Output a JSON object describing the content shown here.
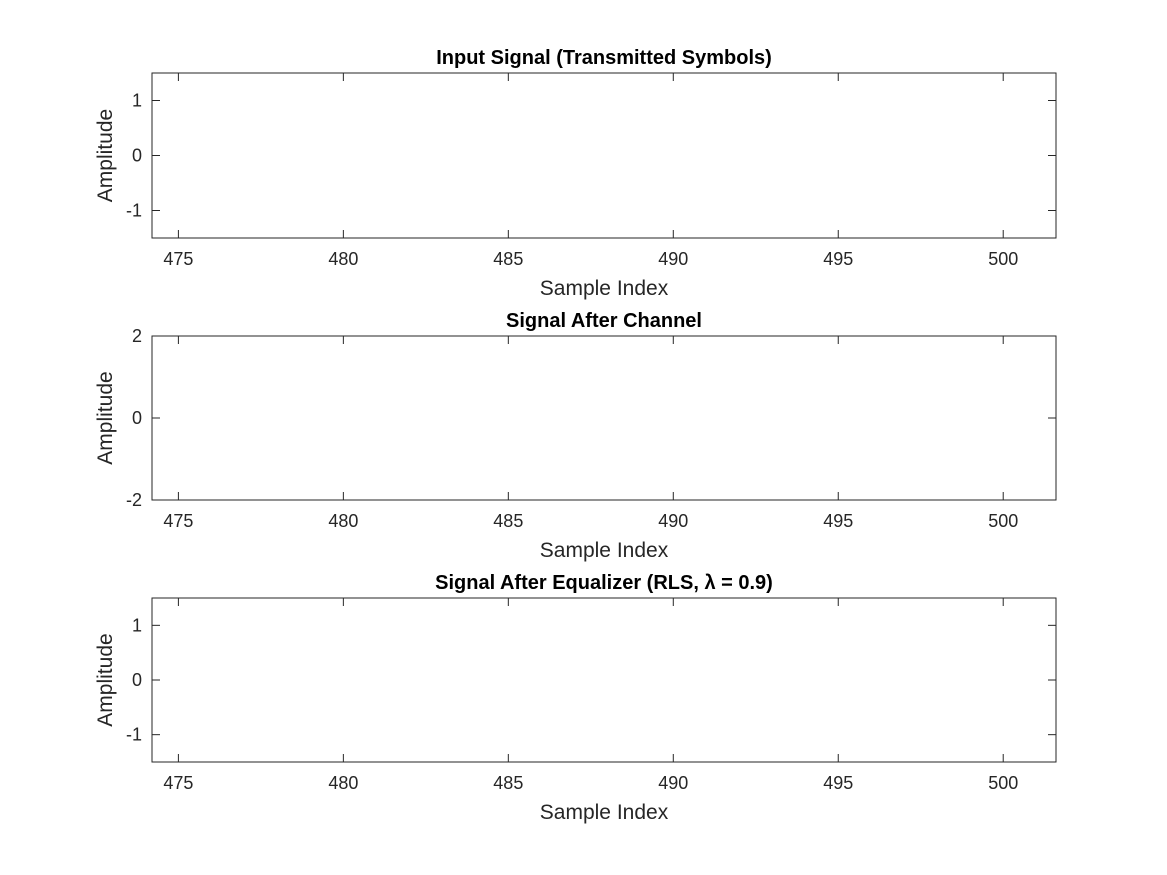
{
  "chart_data": [
    {
      "type": "stem",
      "title": "Input Signal (Transmitted Symbols)",
      "xlabel": "Sample Index",
      "ylabel": "Amplitude",
      "color": "#0000ff",
      "xlim": [
        474.2,
        501.6
      ],
      "ylim": [
        -1.5,
        1.5
      ],
      "xticks": [
        475,
        480,
        485,
        490,
        495,
        500
      ],
      "yticks": [
        -1,
        0,
        1
      ],
      "grid": true,
      "x": [
        475,
        476,
        477,
        478,
        479,
        480,
        481,
        482,
        483,
        484,
        485,
        486,
        487,
        488,
        489,
        490,
        491,
        492,
        493,
        494,
        495,
        496,
        497,
        498,
        499,
        500
      ],
      "y": [
        1,
        -1,
        -1,
        1,
        -1,
        1,
        1,
        -1,
        -1,
        1,
        -1,
        1,
        -1,
        1,
        1,
        1,
        -1,
        -1,
        1,
        1,
        -1,
        -1,
        -1,
        -1,
        1,
        1
      ]
    },
    {
      "type": "stem",
      "title": "Signal After Channel",
      "xlabel": "Sample Index",
      "ylabel": "Amplitude",
      "color": "#ff0000",
      "xlim": [
        474.2,
        501.6
      ],
      "ylim": [
        -2,
        2
      ],
      "xticks": [
        475,
        480,
        485,
        490,
        495,
        500
      ],
      "yticks": [
        -2,
        0,
        2
      ],
      "grid": true,
      "x": [
        475,
        476,
        477,
        478,
        479,
        480,
        481,
        482,
        483,
        484,
        485,
        486,
        487,
        488,
        489,
        490,
        491,
        492,
        493,
        494,
        495,
        496,
        497,
        498,
        499,
        500
      ],
      "y": [
        1.4,
        1.0,
        -1.03,
        -1.0,
        0.58,
        -0.6,
        0.92,
        0.96,
        -1.02,
        -0.98,
        0.52,
        -0.5,
        0.54,
        -0.52,
        0.97,
        1.43,
        1.0,
        -0.94,
        -1.0,
        1.0,
        0.97,
        -1.03,
        -1.47,
        -1.41,
        -1.03,
        1.02
      ]
    },
    {
      "type": "stem",
      "title": "Signal After Equalizer (RLS, λ = 0.9)",
      "xlabel": "Sample Index",
      "ylabel": "Amplitude",
      "color": "#00ff00",
      "xlim": [
        474.2,
        501.6
      ],
      "ylim": [
        -1.5,
        1.5
      ],
      "xticks": [
        475,
        480,
        485,
        490,
        495,
        500
      ],
      "yticks": [
        -1,
        0,
        1
      ],
      "grid": true,
      "x": [
        475,
        476,
        477,
        478,
        479,
        480,
        481,
        482,
        483,
        484,
        485,
        486,
        487,
        488,
        489,
        490,
        491,
        492,
        493,
        494,
        495,
        496,
        497,
        498,
        499,
        500
      ],
      "y": [
        0.76,
        0.43,
        -0.73,
        -1.1,
        0.86,
        -0.49,
        0.87,
        0.82,
        0.14,
        -0.84,
        0.01,
        0.16,
        0.86,
        -0.06,
        -0.55,
        -0.93,
        -0.71,
        0.65,
        -1.22,
        1.11,
        -0.3,
        -0.49,
        0.08,
        1.16,
        -0.53,
        0.62
      ]
    }
  ]
}
